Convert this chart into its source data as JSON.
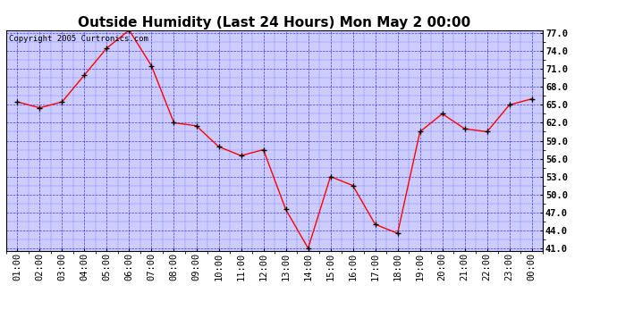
{
  "title": "Outside Humidity (Last 24 Hours) Mon May 2 00:00",
  "copyright": "Copyright 2005 Curtronics.com",
  "x_labels": [
    "01:00",
    "02:00",
    "03:00",
    "04:00",
    "05:00",
    "06:00",
    "07:00",
    "08:00",
    "09:00",
    "10:00",
    "11:00",
    "12:00",
    "13:00",
    "14:00",
    "15:00",
    "16:00",
    "17:00",
    "18:00",
    "19:00",
    "20:00",
    "21:00",
    "22:00",
    "23:00",
    "00:00"
  ],
  "y_values": [
    65.5,
    64.5,
    65.5,
    70.0,
    74.5,
    77.5,
    71.5,
    62.0,
    61.5,
    58.0,
    56.5,
    57.5,
    47.5,
    41.0,
    53.0,
    51.5,
    45.0,
    43.5,
    60.5,
    63.5,
    61.0,
    60.5,
    65.0,
    66.0
  ],
  "ylim_min": 41.0,
  "ylim_max": 77.0,
  "yticks": [
    41.0,
    44.0,
    47.0,
    50.0,
    53.0,
    56.0,
    59.0,
    62.0,
    65.0,
    68.0,
    71.0,
    74.0,
    77.0
  ],
  "line_color": "red",
  "marker": "+",
  "marker_color": "black",
  "plot_bg_color": "#ccccff",
  "outer_bg_color": "#ffffff",
  "grid_color": "blue",
  "title_fontsize": 11,
  "tick_fontsize": 7.5,
  "copyright_fontsize": 6.5
}
